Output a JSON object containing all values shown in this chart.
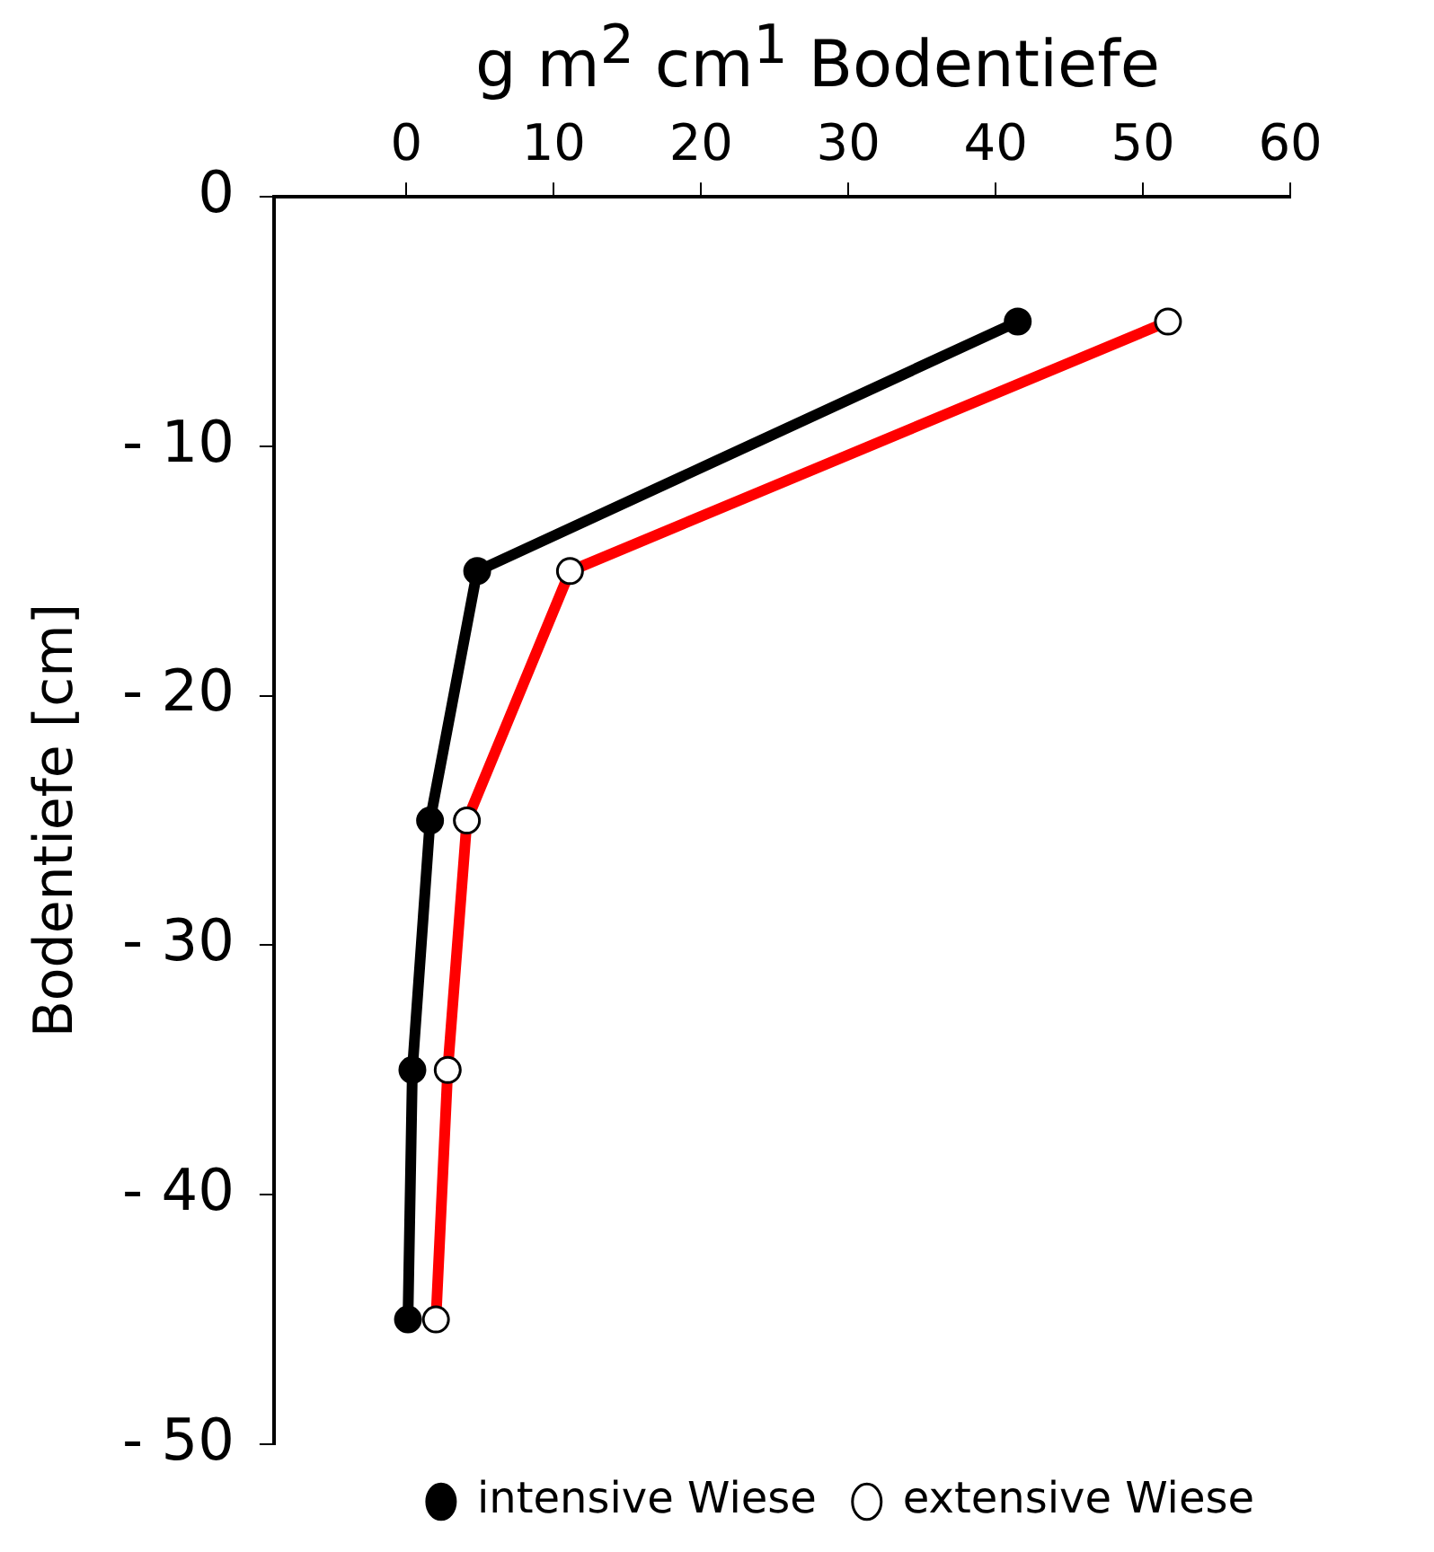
{
  "chart_data": {
    "type": "line",
    "xlabel": "g m$^{2}$ cm$^{1}$ Bodentiefe",
    "ylabel": "Bodentiefe [cm]",
    "xlim": [
      -9,
      60
    ],
    "xticks": [
      0,
      10,
      20,
      30,
      40,
      50,
      60
    ],
    "ylim": [
      -50,
      0
    ],
    "yticks": [
      0,
      {
        "value": -10,
        "label": "- 10"
      },
      {
        "value": -20,
        "label": "- 20"
      },
      {
        "value": -30,
        "label": "- 30"
      },
      {
        "value": -40,
        "label": "- 40"
      },
      {
        "value": -50,
        "label": "- 50"
      }
    ],
    "grid": false,
    "legend": "bottom right",
    "marker": "circle",
    "line_style": "solid",
    "series": [
      {
        "name": "intensive Wiese",
        "color": "#000000",
        "x": [
          41.5,
          4.8,
          1.6,
          0.4,
          0.1
        ],
        "values": [
          -5,
          -15,
          -25,
          -35,
          -45
        ]
      },
      {
        "name": "extensive Wiese",
        "color": "#ff0000",
        "x": [
          51.7,
          11.1,
          4.1,
          2.8,
          2.0
        ],
        "values": [
          -5,
          -15,
          -25,
          -35,
          -45
        ]
      }
    ]
  }
}
